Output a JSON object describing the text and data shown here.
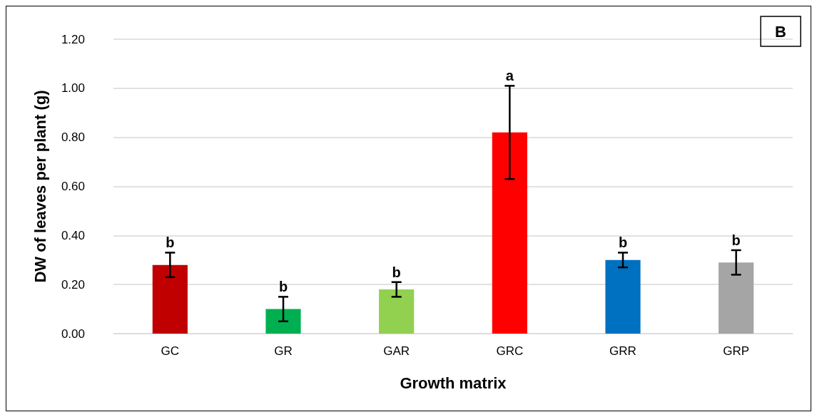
{
  "chart_data": {
    "type": "bar",
    "title": "B",
    "xlabel": "Growth matrix",
    "ylabel": "DW of leaves per plant (g)",
    "categories": [
      "GC",
      "GR",
      "GAR",
      "GRC",
      "GRR",
      "GRP"
    ],
    "values": [
      0.28,
      0.1,
      0.18,
      0.82,
      0.3,
      0.29
    ],
    "colors": [
      "#c00000",
      "#00b050",
      "#92d050",
      "#ff0000",
      "#0070c0",
      "#a5a5a5"
    ],
    "errors": [
      0.05,
      0.05,
      0.03,
      0.19,
      0.03,
      0.05
    ],
    "annotations": [
      {
        "text": "b",
        "x": "GC",
        "y": 0.33
      },
      {
        "text": "b",
        "x": "GR",
        "y": 0.15
      },
      {
        "text": "b",
        "x": "GAR",
        "y": 0.21
      },
      {
        "text": "a",
        "x": "GRC",
        "y": 1.01
      },
      {
        "text": "b",
        "x": "GRR",
        "y": 0.33
      },
      {
        "text": "b",
        "x": "GRP",
        "y": 0.34
      }
    ],
    "ylim": [
      0,
      1.2
    ],
    "yticks": [
      {
        "value": 0,
        "label": "0.00"
      },
      {
        "value": 0.2,
        "label": "0.20"
      },
      {
        "value": 0.4,
        "label": "0.40"
      },
      {
        "value": 0.6,
        "label": "0.60"
      },
      {
        "value": 0.8,
        "label": "0.80"
      },
      {
        "value": 1,
        "label": "1.00"
      },
      {
        "value": 1.2,
        "label": "1.20"
      }
    ],
    "grid": "y"
  }
}
